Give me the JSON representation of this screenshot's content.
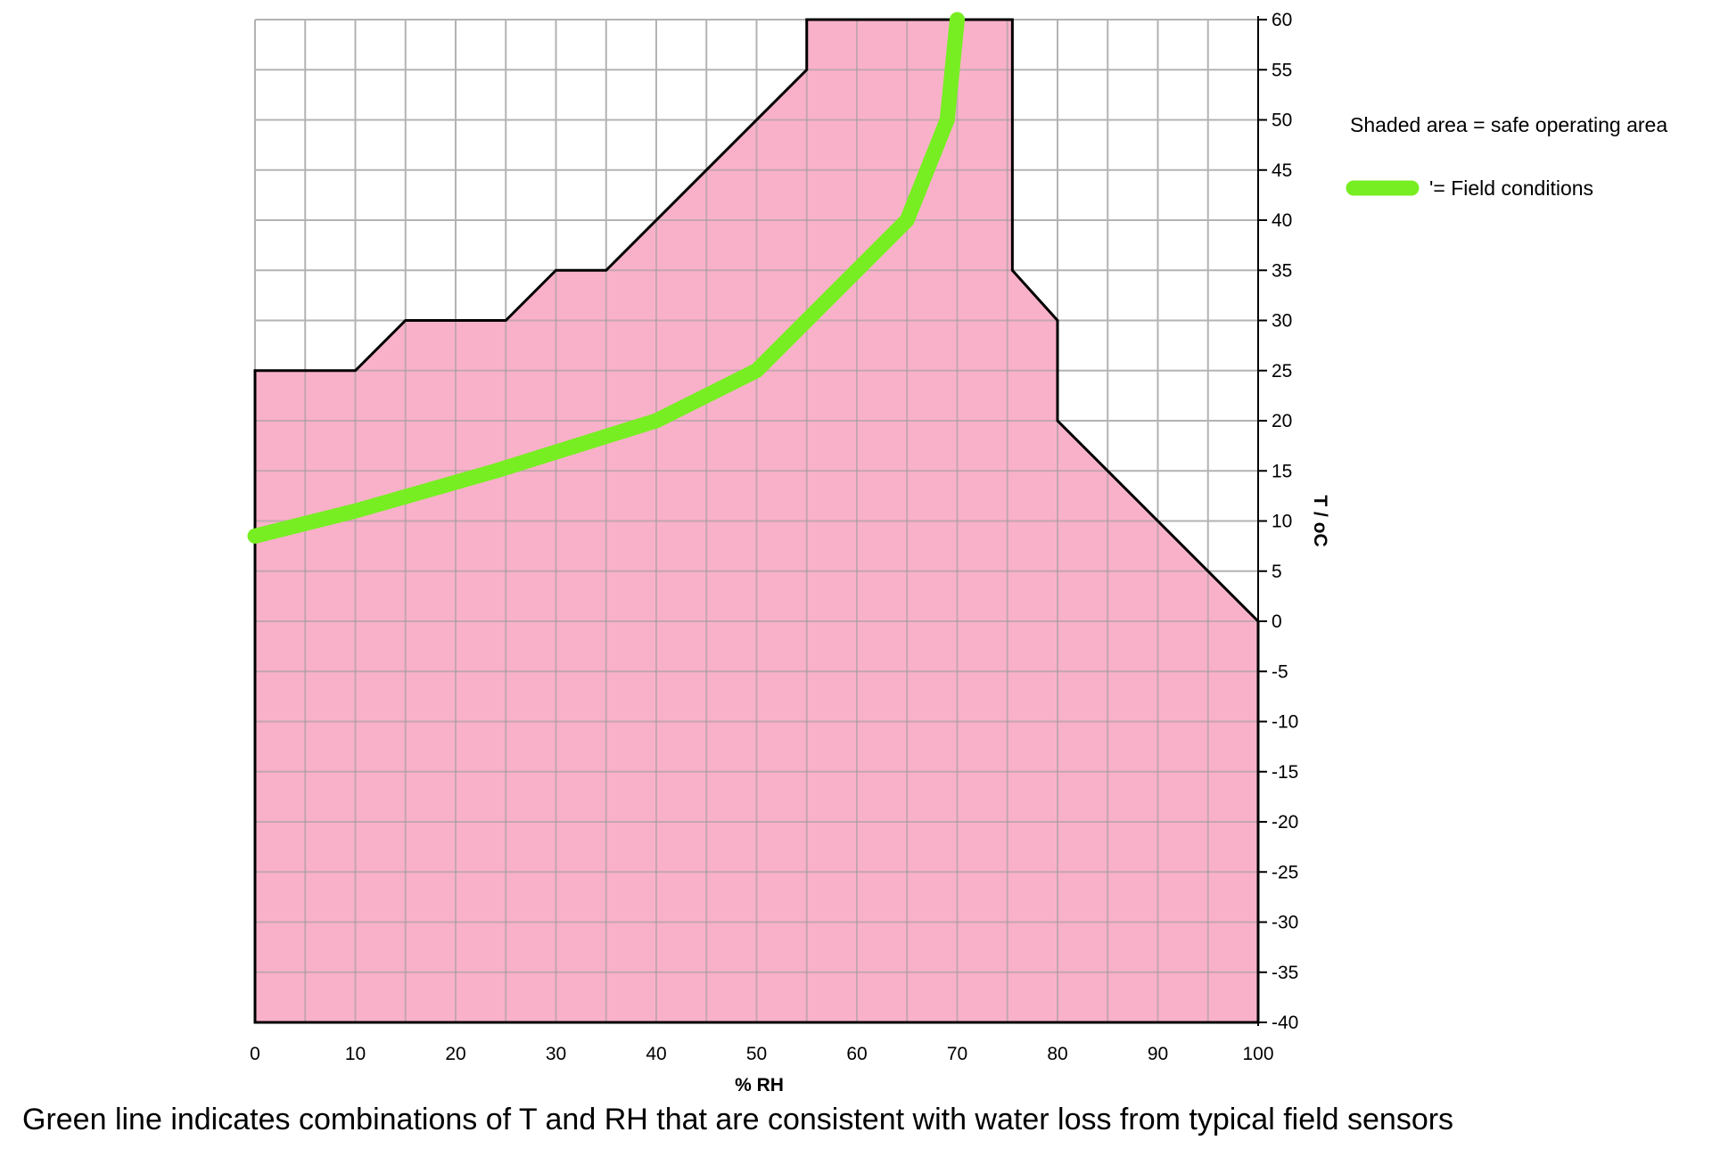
{
  "chart_data": {
    "type": "area",
    "xlabel": "% RH",
    "ylabel": "T / oC",
    "xlim": [
      0,
      100
    ],
    "ylim": [
      -40,
      60
    ],
    "x_ticks": [
      0,
      10,
      20,
      30,
      40,
      50,
      60,
      70,
      80,
      90,
      100
    ],
    "y_ticks": [
      60,
      55,
      50,
      45,
      40,
      35,
      30,
      25,
      20,
      15,
      10,
      5,
      0,
      -5,
      -10,
      -15,
      -20,
      -25,
      -30,
      -35,
      -40
    ],
    "grid": true,
    "y_axis_position": "right",
    "series": [
      {
        "name": "Shaded area = safe operating area",
        "kind": "area",
        "color": "#f9b1c9",
        "outline_color": "#000000",
        "x": [
          0,
          10,
          15,
          25,
          30,
          35,
          55,
          55,
          75.5,
          75.5,
          80,
          80,
          100,
          100,
          0
        ],
        "y": [
          25,
          25,
          30,
          30,
          35,
          35,
          55,
          60,
          60,
          35,
          30,
          20,
          0,
          -40,
          -40
        ]
      },
      {
        "name": "'= Field conditions",
        "kind": "line",
        "color": "#77ee22",
        "x": [
          0,
          10,
          24,
          40,
          50,
          65,
          69,
          70
        ],
        "y": [
          8.5,
          11,
          15,
          20,
          25,
          40,
          50,
          60
        ]
      }
    ],
    "legend": [
      {
        "text": "Shaded area = safe operating area",
        "marker": "none"
      },
      {
        "text": "'= Field conditions",
        "marker": "line",
        "color": "#77ee22"
      }
    ]
  },
  "caption": "Green line indicates combinations of T and RH that are consistent with water loss from typical field sensors"
}
